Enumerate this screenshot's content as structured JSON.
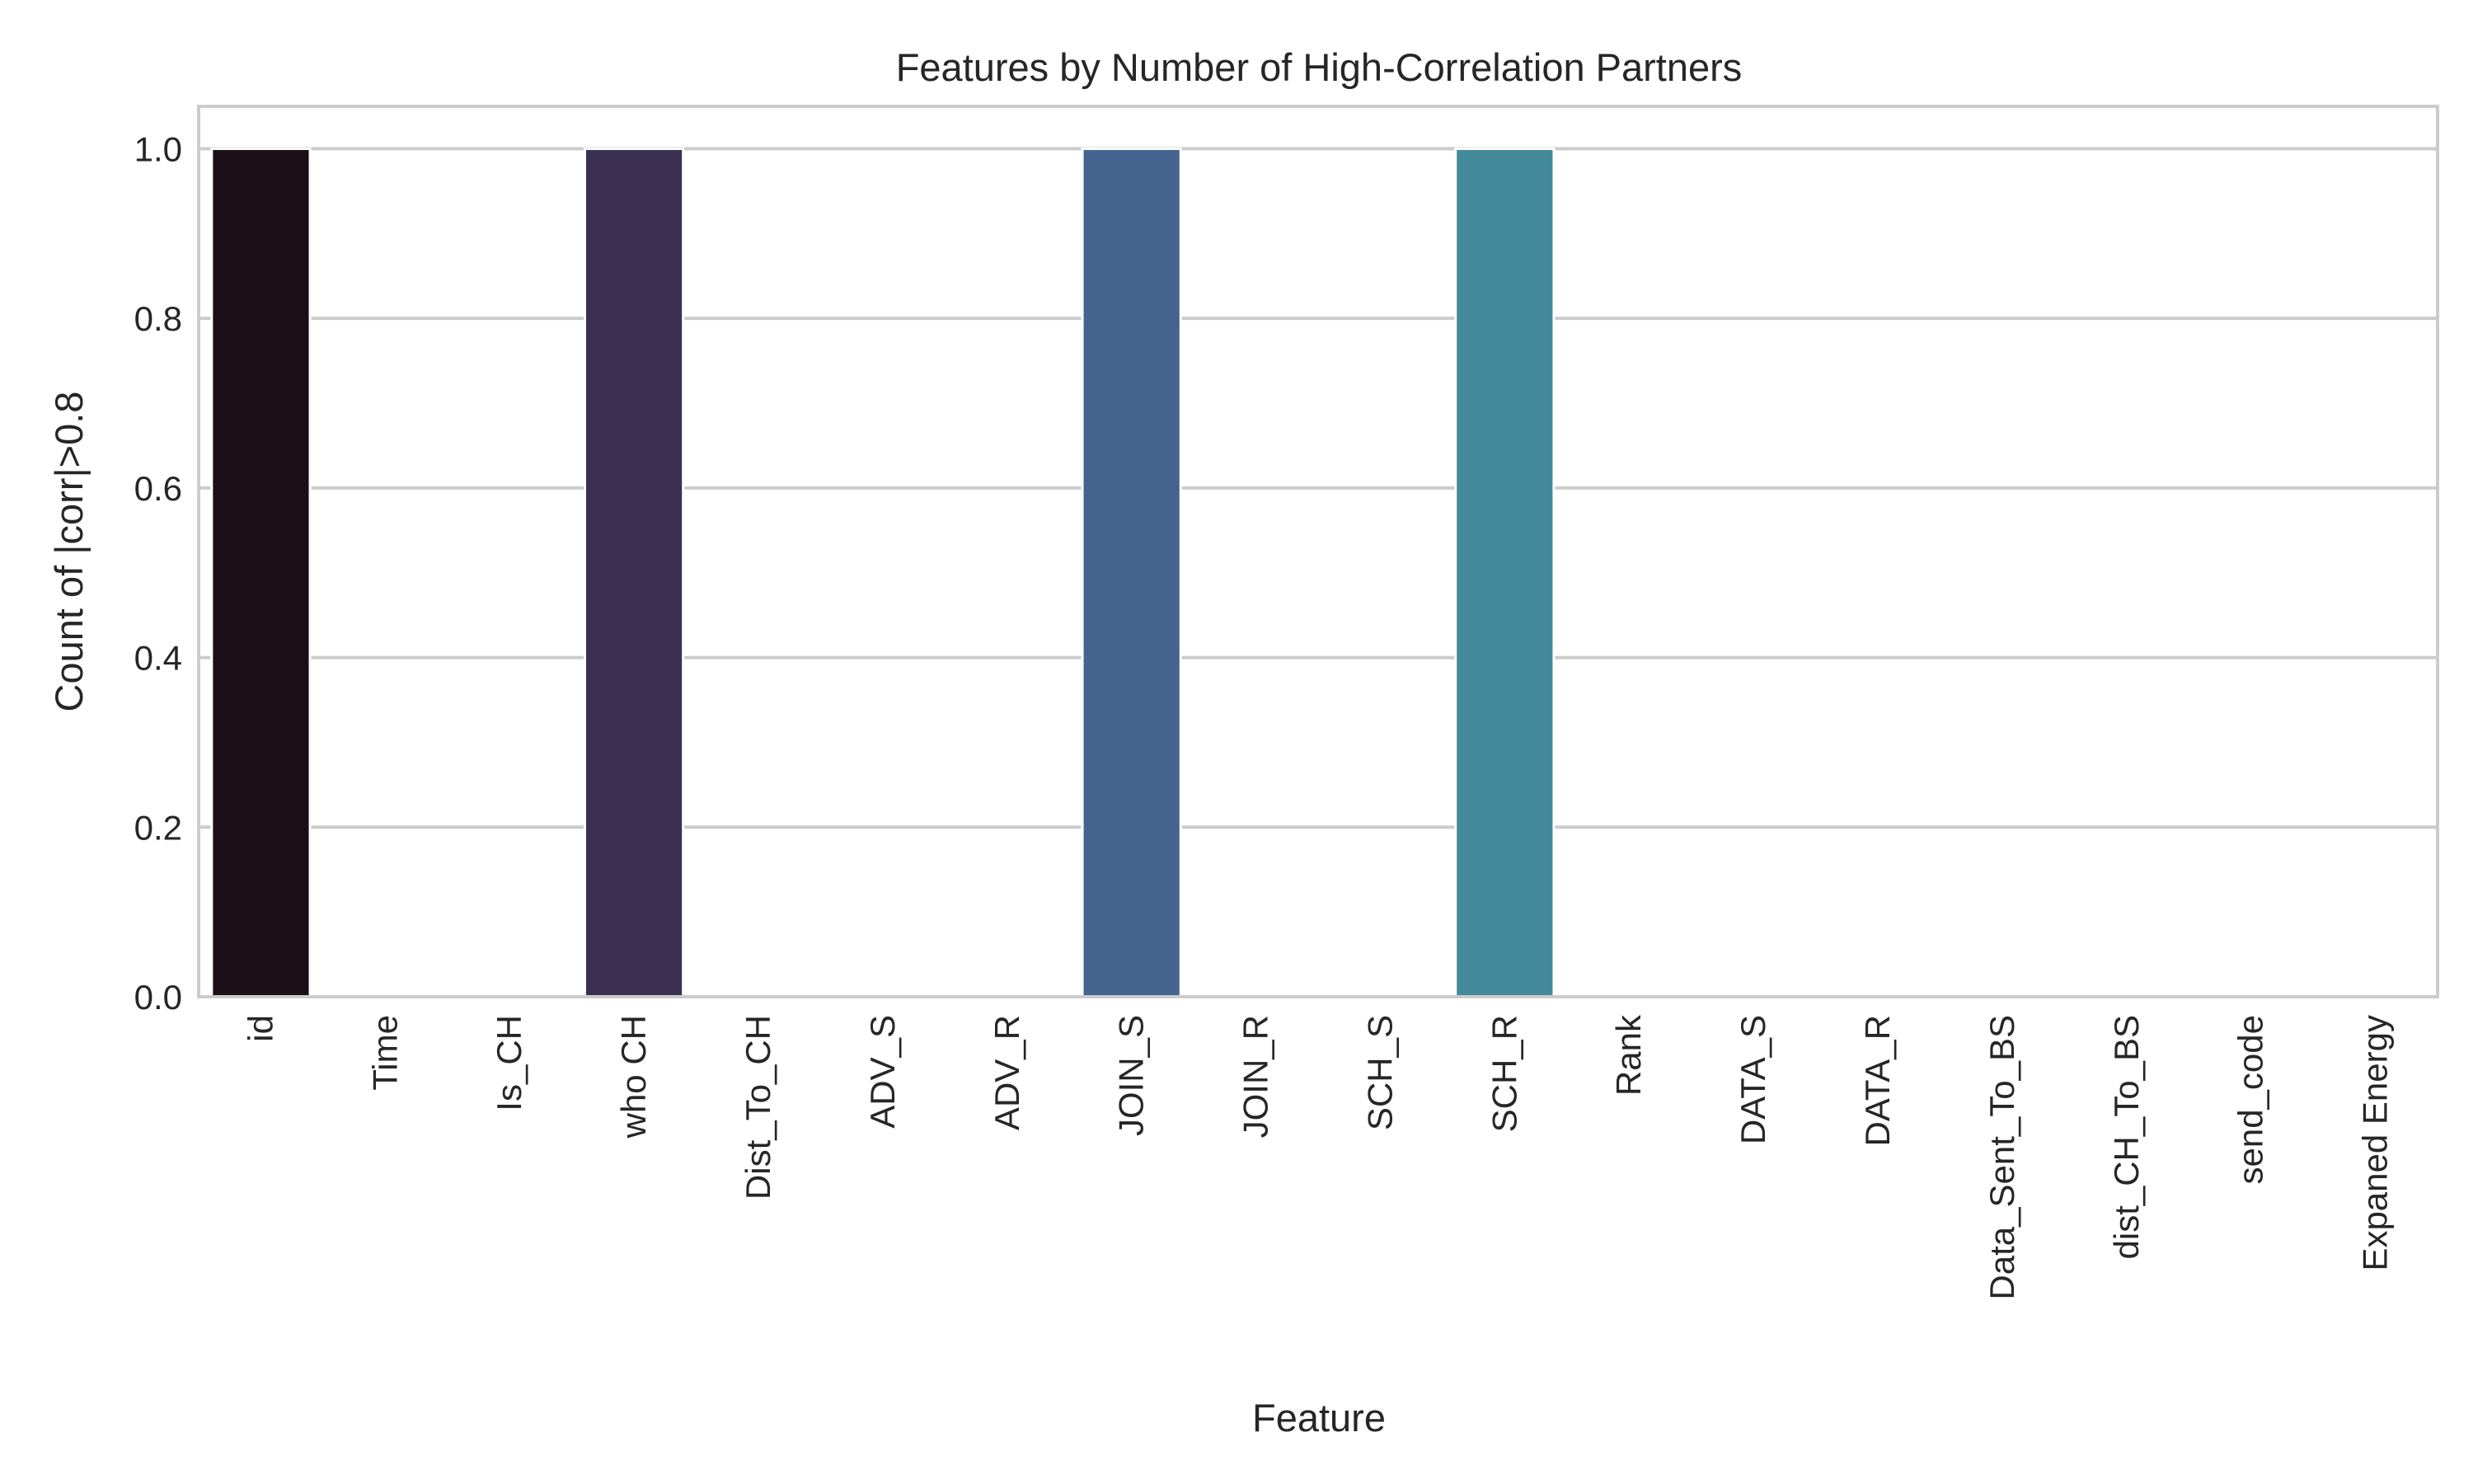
{
  "chart_data": {
    "type": "bar",
    "title": "Features by Number of High-Correlation Partners",
    "xlabel": "Feature",
    "ylabel": "Count of |corr|>0.8",
    "categories": [
      "id",
      "Time",
      "Is_CH",
      "who CH",
      "Dist_To_CH",
      "ADV_S",
      "ADV_R",
      "JOIN_S",
      "JOIN_R",
      "SCH_S",
      "SCH_R",
      "Rank",
      "DATA_S",
      "DATA_R",
      "Data_Sent_To_BS",
      "dist_CH_To_BS",
      "send_code",
      "Expaned Energy"
    ],
    "values": [
      1,
      0,
      0,
      1,
      0,
      0,
      0,
      1,
      0,
      0,
      1,
      0,
      0,
      0,
      0,
      0,
      0,
      0
    ],
    "colors": [
      "#1c0f18",
      "#221b30",
      "#2d2245",
      "#3b3052",
      "#3a3a63",
      "#3c4a75",
      "#3e5a85",
      "#44648f",
      "#3f7091",
      "#3e7b97",
      "#428999",
      "#4a9ba2",
      "#56a9a5",
      "#6cb6a7",
      "#84c3aa",
      "#a2d0b3",
      "#c1dfc4",
      "#dcecd9"
    ],
    "yticks": [
      "0.0",
      "0.2",
      "0.4",
      "0.6",
      "0.8",
      "1.0"
    ],
    "ylim": [
      0,
      1.05
    ],
    "grid": true
  }
}
